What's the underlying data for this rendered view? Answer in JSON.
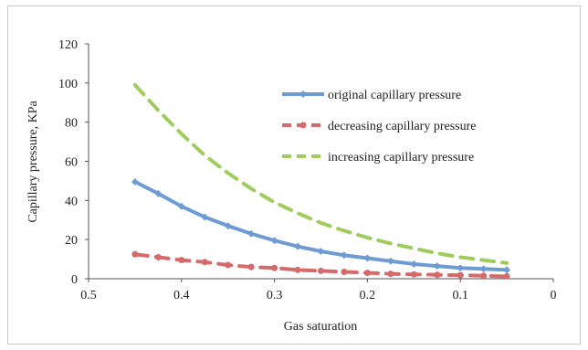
{
  "chart_data": {
    "type": "line",
    "xlabel": "Gas saturation",
    "ylabel": "Capillary pressure,  KPa",
    "xlim": [
      0.5,
      0
    ],
    "ylim": [
      0,
      120
    ],
    "x_ticks": [
      "0.5",
      "0.4",
      "0.3",
      "0.2",
      "0.1",
      "0"
    ],
    "y_ticks": [
      "0",
      "20",
      "40",
      "60",
      "80",
      "100",
      "120"
    ],
    "x_tick_values": [
      0.5,
      0.4,
      0.3,
      0.2,
      0.1,
      0
    ],
    "y_tick_values": [
      0,
      20,
      40,
      60,
      80,
      100,
      120
    ],
    "grid": false,
    "legend_position": "top-right",
    "x": [
      0.45,
      0.425,
      0.4,
      0.375,
      0.35,
      0.325,
      0.3,
      0.275,
      0.25,
      0.225,
      0.2,
      0.175,
      0.15,
      0.125,
      0.1,
      0.075,
      0.05
    ],
    "series": [
      {
        "name": "original capillary pressure",
        "color": "#6f9bd4",
        "dash": "solid",
        "marker": "diamond",
        "values": [
          49.5,
          43.5,
          37,
          31.5,
          27,
          23,
          19.5,
          16.5,
          14,
          12,
          10.5,
          9,
          7.5,
          6.5,
          5.5,
          5,
          4.5
        ]
      },
      {
        "name": "decreasing capillary pressure",
        "color": "#d66a6a",
        "dash": "dashed",
        "marker": "circle",
        "values": [
          12.5,
          11,
          9.5,
          8.5,
          7,
          6,
          5.5,
          4.5,
          4,
          3.5,
          3,
          2.5,
          2.2,
          2,
          1.8,
          1.5,
          1.2
        ]
      },
      {
        "name": "increasing capillary pressure",
        "color": "#9fcc5c",
        "dash": "dashed",
        "marker": "none",
        "values": [
          99,
          86,
          74,
          63,
          54,
          46,
          39,
          33.5,
          28.5,
          24.5,
          21,
          18,
          15.5,
          13,
          11,
          9.5,
          8
        ]
      }
    ]
  }
}
